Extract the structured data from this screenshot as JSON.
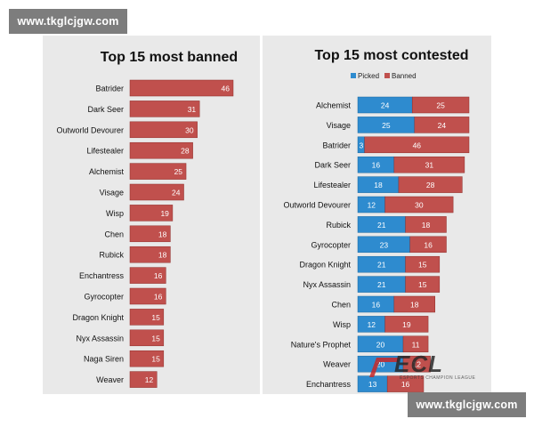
{
  "watermark": {
    "text": "www.tkglcjgw.com"
  },
  "logo": {
    "text": "ECL",
    "subtitle": "ESPORTS CHAMPION LEAGUE"
  },
  "colors": {
    "banned": "#c0504d",
    "picked": "#2e8bcf",
    "panel": "#e9e9e9"
  },
  "chart_data": [
    {
      "type": "bar",
      "orientation": "horizontal",
      "title": "Top 15 most banned",
      "categories": [
        "Batrider",
        "Dark Seer",
        "Outworld Devourer",
        "Lifestealer",
        "Alchemist",
        "Visage",
        "Wisp",
        "Chen",
        "Rubick",
        "Enchantress",
        "Gyrocopter",
        "Dragon Knight",
        "Nyx Assassin",
        "Naga Siren",
        "Weaver"
      ],
      "values": [
        46,
        31,
        30,
        28,
        25,
        24,
        19,
        18,
        18,
        16,
        16,
        15,
        15,
        15,
        12
      ],
      "xlim": [
        0,
        46
      ],
      "grid": false
    },
    {
      "type": "bar",
      "orientation": "horizontal",
      "stacked": true,
      "title": "Top 15 most contested",
      "legend_position": "top-left",
      "categories": [
        "Alchemist",
        "Visage",
        "Batrider",
        "Dark Seer",
        "Lifestealer",
        "Outworld Devourer",
        "Rubick",
        "Gyrocopter",
        "Dragon Knight",
        "Nyx Assassin",
        "Chen",
        "Wisp",
        "Nature's Prophet",
        "Weaver",
        "Enchantress"
      ],
      "series": [
        {
          "name": "Picked",
          "values": [
            24,
            25,
            3,
            16,
            18,
            12,
            21,
            23,
            21,
            21,
            16,
            12,
            20,
            20,
            13
          ]
        },
        {
          "name": "Banned",
          "values": [
            25,
            24,
            46,
            31,
            28,
            30,
            18,
            16,
            15,
            15,
            18,
            19,
            11,
            12,
            16
          ]
        }
      ],
      "xlim": [
        0,
        49
      ],
      "grid": false
    }
  ]
}
